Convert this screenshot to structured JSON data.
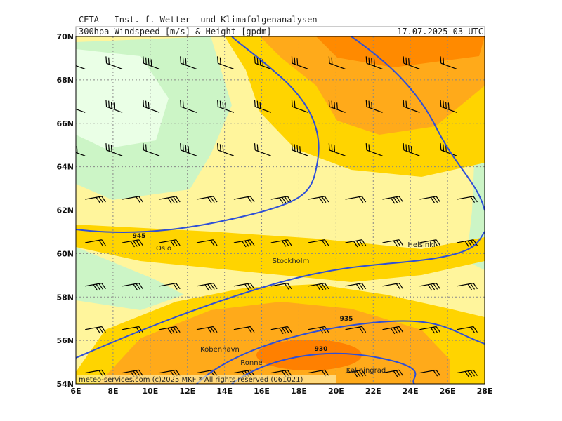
{
  "header": {
    "institute": "CETA – Inst. f. Wetter– und Klimafolgenanalysen –",
    "parameter": "300hpa Windspeed [m/s] & Height [gpdm]",
    "valid_time": "17.07.2025 03 UTC"
  },
  "lat_labels": [
    "70N",
    "68N",
    "66N",
    "64N",
    "62N",
    "60N",
    "58N",
    "56N",
    "54N"
  ],
  "lon_labels": [
    "6E",
    "8E",
    "10E",
    "12E",
    "14E",
    "16E",
    "18E",
    "20E",
    "22E",
    "24E",
    "26E",
    "28E"
  ],
  "places": [
    {
      "label": "Oslo"
    },
    {
      "label": "Stockholm"
    },
    {
      "label": "Helsinki"
    },
    {
      "label": "Kobenhavn"
    },
    {
      "label": "Ronne"
    },
    {
      "label": "Kaliningrad"
    }
  ],
  "contour_labels": [
    "945",
    "935",
    "930"
  ],
  "footer": "meteo-services.com  (c)2025 MKF * All rights reserved (061021)"
}
